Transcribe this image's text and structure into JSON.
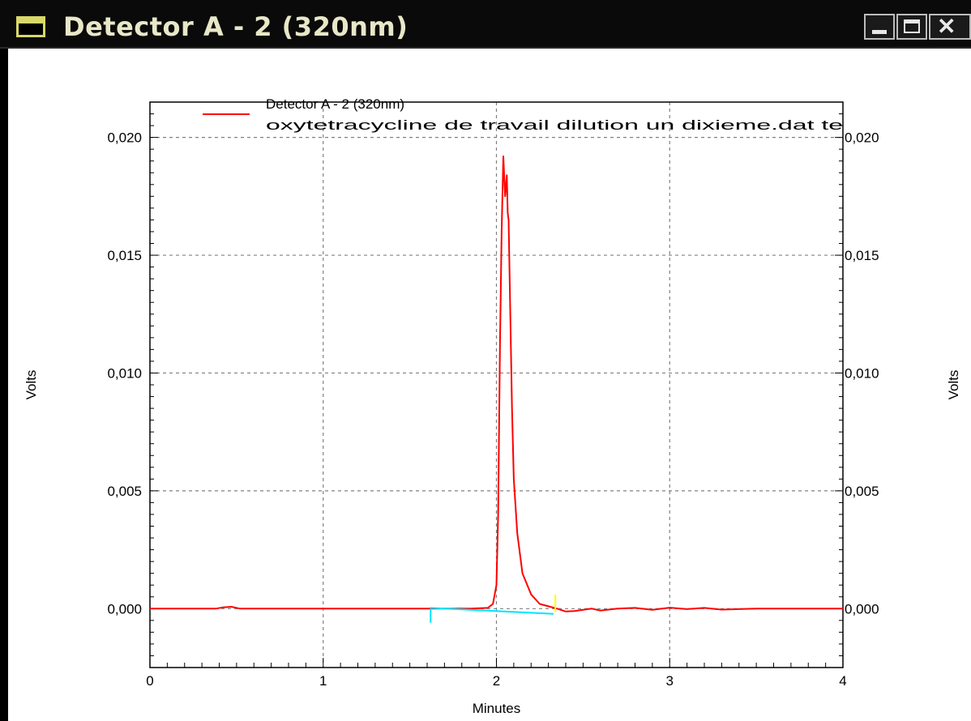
{
  "window": {
    "title": "Detector A - 2 (320nm)",
    "minimize_icon": "minimize-icon",
    "maximize_icon": "maximize-icon",
    "close_icon": "close-icon"
  },
  "colors": {
    "trace": "#ff0000",
    "baseline": "#00e5ff",
    "marker": "#ffff00",
    "grid": "#808080"
  },
  "chart_data": {
    "type": "line",
    "legend": {
      "line1": "Detector A - 2 (320nm)",
      "line2": "oxytetracycline de travail dilution un dixieme.dat te",
      "placement": "top-left"
    },
    "xlabel": "Minutes",
    "ylabel_left": "Volts",
    "ylabel_right": "Volts",
    "xlim": [
      0,
      4
    ],
    "ylim": [
      -0.0025,
      0.0215
    ],
    "x_ticks": [
      {
        "value": 0,
        "label": "0"
      },
      {
        "value": 1,
        "label": "1"
      },
      {
        "value": 2,
        "label": "2"
      },
      {
        "value": 3,
        "label": "3"
      },
      {
        "value": 4,
        "label": "4"
      }
    ],
    "y_ticks": [
      {
        "value": 0.0,
        "label": "0,000"
      },
      {
        "value": 0.005,
        "label": "0,005"
      },
      {
        "value": 0.01,
        "label": "0,010"
      },
      {
        "value": 0.015,
        "label": "0,015"
      },
      {
        "value": 0.02,
        "label": "0,020"
      }
    ],
    "grid": true,
    "series": [
      {
        "color": "#ff0000",
        "x": [
          0,
          0.38,
          0.42,
          0.47,
          0.52,
          1.0,
          1.6,
          1.85,
          1.95,
          1.98,
          2.0,
          2.01,
          2.02,
          2.03,
          2.04,
          2.05,
          2.06,
          2.065,
          2.07,
          2.08,
          2.09,
          2.1,
          2.12,
          2.15,
          2.2,
          2.25,
          2.3,
          2.35,
          2.4,
          2.45,
          2.5,
          2.55,
          2.6,
          2.7,
          2.8,
          2.9,
          3.0,
          3.1,
          3.2,
          3.3,
          3.5,
          4.0
        ],
        "y": [
          0,
          0,
          5e-05,
          8e-05,
          0,
          0,
          0,
          0,
          3e-05,
          0.0002,
          0.001,
          0.004,
          0.011,
          0.016,
          0.0192,
          0.0175,
          0.0184,
          0.0168,
          0.0165,
          0.0125,
          0.0085,
          0.0055,
          0.0032,
          0.0015,
          0.0006,
          0.0002,
          0.0001,
          0,
          -0.00012,
          -0.0001,
          -5e-05,
          0,
          -8e-05,
          0,
          3e-05,
          -5e-05,
          4e-05,
          -2e-05,
          3e-05,
          -4e-05,
          0,
          0
        ]
      },
      {
        "color": "#00e5ff",
        "x": [
          1.62,
          2.33
        ],
        "y": [
          3e-05,
          -0.00022
        ]
      }
    ],
    "marks": [
      {
        "color": "#00e5ff",
        "x": 1.62,
        "y_from": 0.0,
        "y_to": -0.0006
      },
      {
        "color": "#ffff00",
        "x": 2.34,
        "y_from": 0.0006,
        "y_to": -0.00015
      }
    ]
  }
}
